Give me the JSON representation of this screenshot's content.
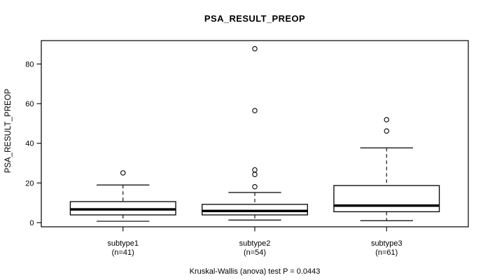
{
  "title": "PSA_RESULT_PREOP",
  "y_axis_label": "PSA_RESULT_PREOP",
  "caption": "Kruskal-Wallis (anova) test P = 0.0443",
  "chart_data": {
    "type": "boxplot",
    "title": "PSA_RESULT_PREOP",
    "ylabel": "PSA_RESULT_PREOP",
    "xlabel": "",
    "ylim": [
      -2.1,
      91.8
    ],
    "yticks": [
      0,
      20,
      40,
      60,
      80
    ],
    "grid": false,
    "legend": "none",
    "annotation": "Kruskal-Wallis (anova) test P = 0.0443",
    "categories": [
      "subtype1",
      "subtype2",
      "subtype3"
    ],
    "category_sublabels": [
      "(n=41)",
      "(n=54)",
      "(n=61)"
    ],
    "groups": [
      {
        "label": "subtype1",
        "sublabel": "(n=41)",
        "n": 41,
        "whisker_low": 0.7,
        "q1": 3.9,
        "median": 6.7,
        "q3": 10.6,
        "whisker_high": 19.0,
        "outliers": [
          25.1
        ]
      },
      {
        "label": "subtype2",
        "sublabel": "(n=54)",
        "n": 54,
        "whisker_low": 1.3,
        "q1": 3.9,
        "median": 5.9,
        "q3": 9.2,
        "whisker_high": 15.2,
        "outliers": [
          18.1,
          24.3,
          26.6,
          56.5,
          87.7
        ]
      },
      {
        "label": "subtype3",
        "sublabel": "(n=61)",
        "n": 61,
        "whisker_low": 1.0,
        "q1": 5.5,
        "median": 8.6,
        "q3": 18.7,
        "whisker_high": 37.7,
        "outliers": [
          46.2,
          51.9
        ]
      }
    ],
    "colors": {
      "line": "#000000",
      "box_fill": "#ffffff",
      "background": "#ffffff"
    }
  }
}
